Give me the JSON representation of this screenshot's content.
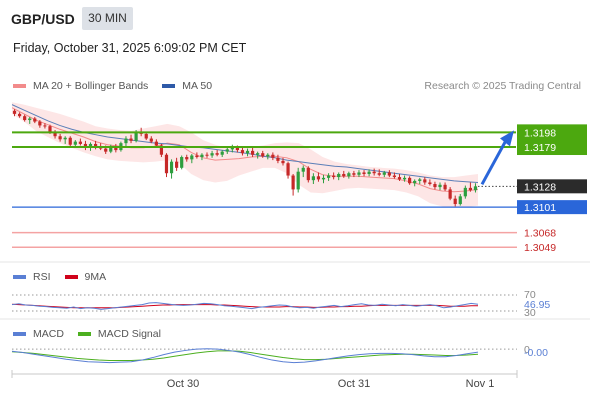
{
  "header": {
    "symbol": "GBP/USD",
    "timeframe": "30 MIN",
    "datetime": "Friday, October 31, 2025 6:09:02 PM CET",
    "copyright": "Research © 2025 Trading Central"
  },
  "legends": {
    "main": [
      {
        "label": "MA 20 + Bollinger Bands",
        "color": "#f28b8b"
      },
      {
        "label": "MA 50",
        "color": "#2e5aa8"
      }
    ],
    "rsi": [
      {
        "label": "RSI",
        "color": "#5a7fd4"
      },
      {
        "label": "9MA",
        "color": "#d0021b"
      }
    ],
    "macd": [
      {
        "label": "MACD",
        "color": "#5a7fd4"
      },
      {
        "label": "MACD Signal",
        "color": "#4caf1f"
      }
    ]
  },
  "colors": {
    "up": "#2e9e3f",
    "down": "#c62828",
    "resistance": "#4ca80f",
    "support": "#2a66d9",
    "pivot_red": "#f4a3a3",
    "bollinger_fill": "#fde2e2",
    "arrow": "#2a66d9"
  },
  "chart_data": [
    {
      "type": "candlestick",
      "name": "price",
      "x_labels": [
        "Oct 30",
        "Oct 31",
        "Nov 1"
      ],
      "ylim": [
        1.3035,
        1.324
      ],
      "candles": [
        [
          1.3226,
          1.3228,
          1.3219,
          1.3222
        ],
        [
          1.3222,
          1.3224,
          1.3217,
          1.3219
        ],
        [
          1.3219,
          1.3221,
          1.3212,
          1.3214
        ],
        [
          1.3214,
          1.3218,
          1.3209,
          1.3216
        ],
        [
          1.3216,
          1.3218,
          1.321,
          1.3212
        ],
        [
          1.3212,
          1.3214,
          1.3204,
          1.3207
        ],
        [
          1.3207,
          1.321,
          1.3203,
          1.3206
        ],
        [
          1.3206,
          1.3208,
          1.3196,
          1.3198
        ],
        [
          1.3198,
          1.3201,
          1.319,
          1.3193
        ],
        [
          1.3193,
          1.3196,
          1.3186,
          1.3189
        ],
        [
          1.3189,
          1.3193,
          1.3183,
          1.3191
        ],
        [
          1.3191,
          1.3193,
          1.318,
          1.3182
        ],
        [
          1.3182,
          1.3188,
          1.3178,
          1.3186
        ],
        [
          1.3186,
          1.319,
          1.3181,
          1.3183
        ],
        [
          1.3183,
          1.3187,
          1.3175,
          1.3178
        ],
        [
          1.3178,
          1.3185,
          1.3174,
          1.3183
        ],
        [
          1.3183,
          1.3187,
          1.3176,
          1.318
        ],
        [
          1.318,
          1.3184,
          1.3175,
          1.3177
        ],
        [
          1.3177,
          1.3181,
          1.317,
          1.3173
        ],
        [
          1.3173,
          1.3182,
          1.3171,
          1.318
        ],
        [
          1.318,
          1.3183,
          1.3172,
          1.3175
        ],
        [
          1.3175,
          1.3186,
          1.3173,
          1.3184
        ],
        [
          1.3184,
          1.3193,
          1.318,
          1.319
        ],
        [
          1.319,
          1.3195,
          1.3184,
          1.3187
        ],
        [
          1.3187,
          1.3201,
          1.3185,
          1.3198
        ],
        [
          1.3198,
          1.3204,
          1.3193,
          1.3196
        ],
        [
          1.3196,
          1.3199,
          1.3188,
          1.319
        ],
        [
          1.319,
          1.3193,
          1.3184,
          1.3186
        ],
        [
          1.3186,
          1.3189,
          1.3178,
          1.3181
        ],
        [
          1.3181,
          1.3183,
          1.3166,
          1.3169
        ],
        [
          1.3169,
          1.3171,
          1.314,
          1.3145
        ],
        [
          1.3145,
          1.3163,
          1.3138,
          1.316
        ],
        [
          1.316,
          1.3165,
          1.3148,
          1.3152
        ],
        [
          1.3152,
          1.3168,
          1.315,
          1.3166
        ],
        [
          1.3166,
          1.3169,
          1.316,
          1.3163
        ],
        [
          1.3163,
          1.317,
          1.3158,
          1.3168
        ],
        [
          1.3168,
          1.3172,
          1.3164,
          1.3166
        ],
        [
          1.3166,
          1.3171,
          1.3162,
          1.3169
        ],
        [
          1.3169,
          1.3172,
          1.3165,
          1.3168
        ],
        [
          1.3168,
          1.3174,
          1.3165,
          1.3171
        ],
        [
          1.3171,
          1.3175,
          1.3167,
          1.3169
        ],
        [
          1.3169,
          1.3175,
          1.3166,
          1.3173
        ],
        [
          1.3173,
          1.3179,
          1.317,
          1.3176
        ],
        [
          1.3176,
          1.3182,
          1.3172,
          1.3179
        ],
        [
          1.3179,
          1.3181,
          1.3172,
          1.3175
        ],
        [
          1.3175,
          1.3178,
          1.3168,
          1.3171
        ],
        [
          1.3171,
          1.3177,
          1.3167,
          1.3174
        ],
        [
          1.3174,
          1.3178,
          1.3166,
          1.3169
        ],
        [
          1.3169,
          1.3173,
          1.3164,
          1.3171
        ],
        [
          1.3171,
          1.3174,
          1.3165,
          1.3167
        ],
        [
          1.3167,
          1.3171,
          1.3163,
          1.3169
        ],
        [
          1.3169,
          1.3172,
          1.3162,
          1.3165
        ],
        [
          1.3165,
          1.3169,
          1.3158,
          1.3161
        ],
        [
          1.3161,
          1.3165,
          1.3155,
          1.3158
        ],
        [
          1.3158,
          1.316,
          1.3138,
          1.3142
        ],
        [
          1.3142,
          1.3144,
          1.3116,
          1.3124
        ],
        [
          1.3124,
          1.3152,
          1.312,
          1.3147
        ],
        [
          1.3147,
          1.3155,
          1.314,
          1.3152
        ],
        [
          1.3152,
          1.3154,
          1.3133,
          1.3136
        ],
        [
          1.3136,
          1.3145,
          1.3131,
          1.3141
        ],
        [
          1.3141,
          1.3146,
          1.3134,
          1.3137
        ],
        [
          1.3137,
          1.3143,
          1.3132,
          1.3139
        ],
        [
          1.3139,
          1.3145,
          1.3135,
          1.3142
        ],
        [
          1.3142,
          1.3146,
          1.3137,
          1.314
        ],
        [
          1.314,
          1.3146,
          1.3136,
          1.3144
        ],
        [
          1.3144,
          1.3148,
          1.3139,
          1.3141
        ],
        [
          1.3141,
          1.3147,
          1.3138,
          1.3145
        ],
        [
          1.3145,
          1.3148,
          1.314,
          1.3143
        ],
        [
          1.3143,
          1.3149,
          1.314,
          1.3146
        ],
        [
          1.3146,
          1.3149,
          1.3141,
          1.3144
        ],
        [
          1.3144,
          1.315,
          1.3141,
          1.3147
        ],
        [
          1.3147,
          1.3151,
          1.3142,
          1.3145
        ],
        [
          1.3145,
          1.315,
          1.3141,
          1.3143
        ],
        [
          1.3143,
          1.3148,
          1.314,
          1.3146
        ],
        [
          1.3146,
          1.3149,
          1.314,
          1.3142
        ],
        [
          1.3142,
          1.3146,
          1.3138,
          1.314
        ],
        [
          1.314,
          1.3144,
          1.3135,
          1.3137
        ],
        [
          1.3137,
          1.3142,
          1.3134,
          1.3139
        ],
        [
          1.3139,
          1.3141,
          1.313,
          1.3132
        ],
        [
          1.3132,
          1.3137,
          1.3128,
          1.3135
        ],
        [
          1.3135,
          1.3139,
          1.3131,
          1.3137
        ],
        [
          1.3137,
          1.314,
          1.313,
          1.3133
        ],
        [
          1.3133,
          1.3137,
          1.3129,
          1.3131
        ],
        [
          1.3131,
          1.3134,
          1.3124,
          1.3127
        ],
        [
          1.3127,
          1.3133,
          1.3123,
          1.313
        ],
        [
          1.313,
          1.3133,
          1.3122,
          1.3124
        ],
        [
          1.3124,
          1.3127,
          1.311,
          1.3112
        ],
        [
          1.3112,
          1.3116,
          1.3102,
          1.3105
        ],
        [
          1.3105,
          1.3118,
          1.3103,
          1.3115
        ],
        [
          1.3115,
          1.3129,
          1.3112,
          1.3126
        ],
        [
          1.3126,
          1.3133,
          1.3121,
          1.3123
        ],
        [
          1.3123,
          1.3132,
          1.312,
          1.3128
        ]
      ],
      "bollinger": {
        "ma": [
          1.323,
          1.3222,
          1.3214,
          1.3208,
          1.3202,
          1.3197,
          1.3192,
          1.3186,
          1.3182,
          1.318,
          1.3178,
          1.3178,
          1.318,
          1.3184,
          1.3182,
          1.3172,
          1.3165,
          1.3162,
          1.3163,
          1.3164,
          1.3166,
          1.3167,
          1.3167,
          1.3165,
          1.316,
          1.315,
          1.3143,
          1.3141,
          1.3141,
          1.3141,
          1.314,
          1.3139,
          1.3138,
          1.3135,
          1.3131,
          1.3125,
          1.3122,
          1.3121,
          1.3122,
          1.3124
        ],
        "upper": [
          1.3237,
          1.3234,
          1.323,
          1.3226,
          1.3222,
          1.3217,
          1.3212,
          1.3206,
          1.3203,
          1.3201,
          1.32,
          1.3203,
          1.3206,
          1.3209,
          1.3206,
          1.3198,
          1.3188,
          1.3182,
          1.3178,
          1.3178,
          1.3179,
          1.3181,
          1.3184,
          1.3185,
          1.3184,
          1.3176,
          1.3166,
          1.316,
          1.3157,
          1.3155,
          1.3153,
          1.3152,
          1.3151,
          1.3149,
          1.3146,
          1.3142,
          1.314,
          1.314,
          1.3142,
          1.3144
        ],
        "lower": [
          1.3222,
          1.3212,
          1.32,
          1.3192,
          1.3184,
          1.3178,
          1.3172,
          1.3167,
          1.3163,
          1.3161,
          1.316,
          1.3159,
          1.316,
          1.3162,
          1.3158,
          1.3144,
          1.3136,
          1.3133,
          1.3135,
          1.3142,
          1.3147,
          1.3152,
          1.3152,
          1.3145,
          1.313,
          1.312,
          1.3119,
          1.3122,
          1.3125,
          1.3126,
          1.3125,
          1.3124,
          1.3123,
          1.312,
          1.3115,
          1.3106,
          1.3102,
          1.3101,
          1.3101,
          1.3103
        ]
      },
      "ma50": [
        1.3234,
        1.3227,
        1.322,
        1.3213,
        1.3207,
        1.3202,
        1.3198,
        1.3195,
        1.3192,
        1.319,
        1.3188,
        1.3186,
        1.3184,
        1.3183,
        1.3181,
        1.3179,
        1.3178,
        1.3176,
        1.3174,
        1.3172,
        1.317,
        1.3167,
        1.3165,
        1.3162,
        1.316,
        1.3158,
        1.3156,
        1.3154,
        1.3153,
        1.3151,
        1.3149,
        1.3147,
        1.3145,
        1.3143,
        1.3141,
        1.3139,
        1.3137,
        1.3135,
        1.3134,
        1.3133
      ],
      "levels": [
        {
          "value": 1.3198,
          "label": "1.3198",
          "kind": "resistance"
        },
        {
          "value": 1.3179,
          "label": "1.3179",
          "kind": "resistance"
        },
        {
          "value": 1.3128,
          "label": "1.3128",
          "kind": "last"
        },
        {
          "value": 1.3101,
          "label": "1.3101",
          "kind": "support"
        },
        {
          "value": 1.3068,
          "label": "1.3068",
          "kind": "pivot"
        },
        {
          "value": 1.3049,
          "label": "1.3049",
          "kind": "pivot"
        }
      ]
    },
    {
      "type": "line",
      "name": "RSI",
      "ylim": [
        30,
        70
      ],
      "ticks": [
        "70",
        "30"
      ],
      "current_label": "46.95",
      "rsi": [
        46,
        48,
        45,
        44,
        42,
        41,
        39,
        38,
        37,
        40,
        36,
        38,
        37,
        34,
        36,
        38,
        40,
        42,
        44,
        46,
        50,
        51,
        49,
        47,
        45,
        44,
        45,
        47,
        49,
        48,
        46,
        43,
        42,
        40,
        38,
        36,
        39,
        41,
        43,
        45,
        44,
        40,
        38,
        39,
        37,
        40,
        42,
        44,
        41,
        43,
        46,
        48,
        45,
        44,
        47,
        45,
        43,
        46,
        44,
        42,
        44,
        46,
        43,
        38,
        40,
        43,
        46,
        49,
        47
      ],
      "ma9": [
        47,
        46,
        45,
        44,
        43,
        42,
        41,
        40,
        39,
        38,
        38,
        38,
        38,
        38,
        38,
        38,
        39,
        40,
        41,
        42,
        43,
        44,
        45,
        45,
        46,
        46,
        46,
        46,
        46,
        46,
        45,
        45,
        44,
        43,
        42,
        41,
        40,
        40,
        40,
        40,
        41,
        41,
        40,
        40,
        39,
        39,
        40,
        40,
        41,
        41,
        42,
        42,
        43,
        44,
        44,
        44,
        44,
        44,
        44,
        44,
        44,
        44,
        44,
        43,
        42,
        42,
        42,
        43,
        43
      ]
    },
    {
      "type": "line",
      "name": "MACD",
      "ylim": [
        -0.0045,
        0.001
      ],
      "ticks": [
        "0"
      ],
      "current_label": "-0.00",
      "macd": [
        -0.0005,
        -0.0008,
        -0.0012,
        -0.0016,
        -0.002,
        -0.0024,
        -0.0027,
        -0.003,
        -0.0031,
        -0.0032,
        -0.0031,
        -0.003,
        -0.0026,
        -0.002,
        -0.0013,
        -0.0007,
        -0.0003,
        0.0,
        0.0001,
        0.0,
        -0.0003,
        -0.0007,
        -0.0013,
        -0.002,
        -0.0026,
        -0.003,
        -0.0032,
        -0.0031,
        -0.0028,
        -0.0024,
        -0.002,
        -0.0016,
        -0.0013,
        -0.0011,
        -0.001,
        -0.001,
        -0.0011,
        -0.0013,
        -0.0016,
        -0.0018,
        -0.0018,
        -0.0015,
        -0.0011,
        -0.0007
      ],
      "signal": [
        -0.0006,
        -0.0008,
        -0.001,
        -0.0013,
        -0.0016,
        -0.0019,
        -0.0022,
        -0.0024,
        -0.0026,
        -0.0027,
        -0.0027,
        -0.0027,
        -0.0026,
        -0.0024,
        -0.0021,
        -0.0017,
        -0.0013,
        -0.0009,
        -0.0006,
        -0.0004,
        -0.0004,
        -0.0005,
        -0.0008,
        -0.0012,
        -0.0016,
        -0.002,
        -0.0023,
        -0.0025,
        -0.0025,
        -0.0024,
        -0.0022,
        -0.002,
        -0.0018,
        -0.0016,
        -0.0014,
        -0.0013,
        -0.0012,
        -0.0012,
        -0.0013,
        -0.0014,
        -0.0015,
        -0.0015,
        -0.0014,
        -0.0012
      ]
    }
  ]
}
